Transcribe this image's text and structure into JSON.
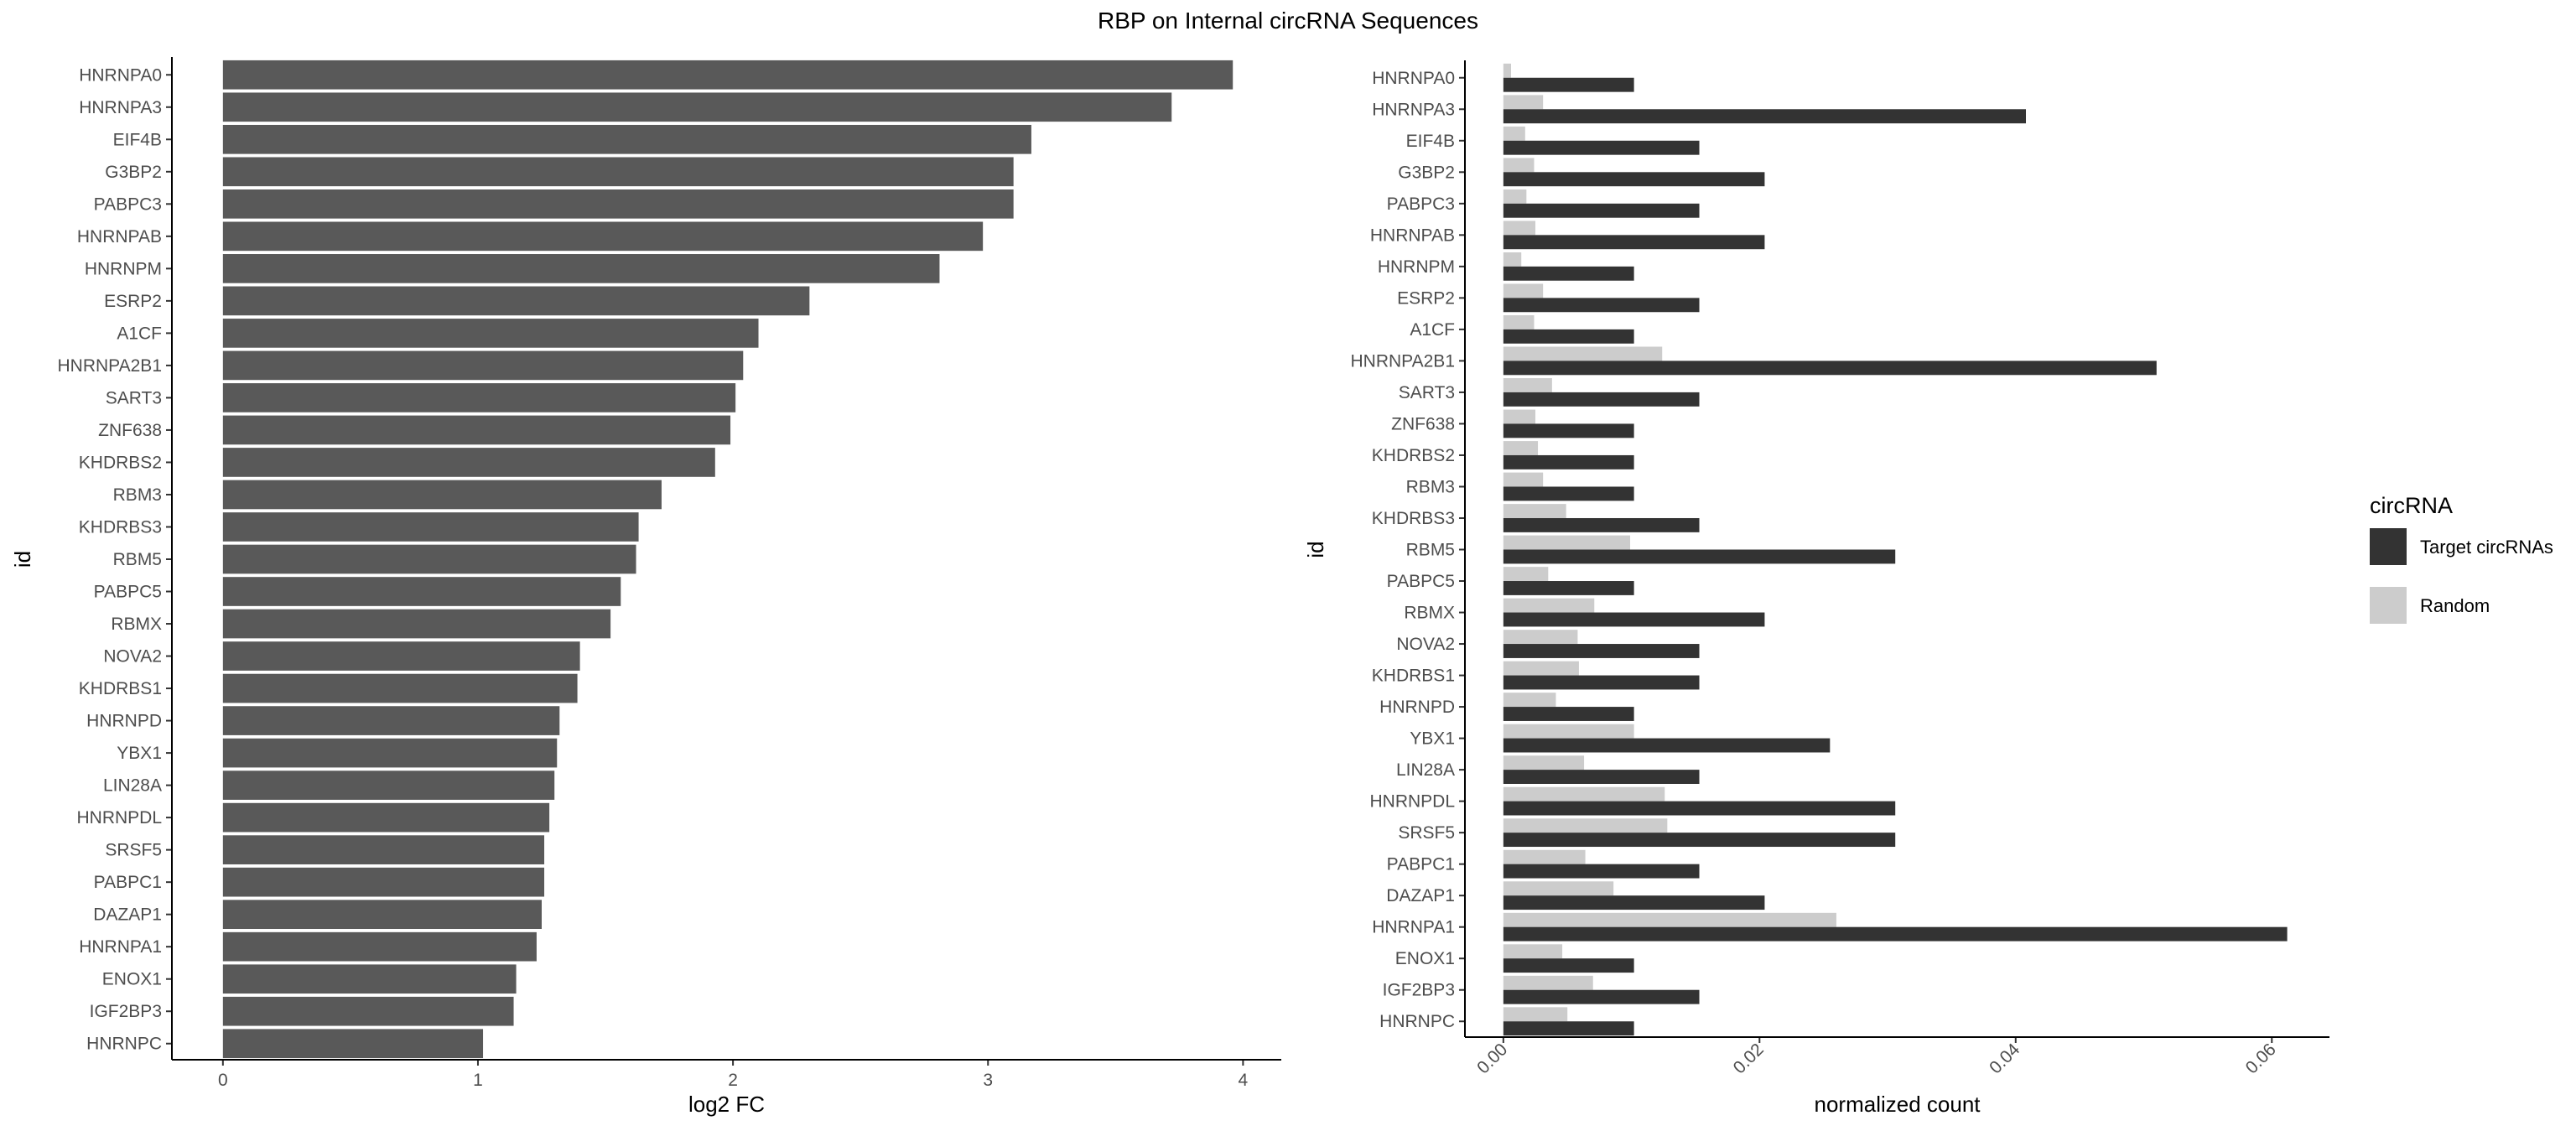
{
  "title": "RBP on Internal circRNA Sequences",
  "chart_data": [
    {
      "type": "bar",
      "orientation": "horizontal",
      "xlabel": "log2 FC",
      "ylabel": "id",
      "xlim": [
        -0.2,
        4.15
      ],
      "xticks": [
        0,
        1,
        2,
        3,
        4
      ],
      "grid": false,
      "bar_color": "#595959",
      "categories": [
        "HNRNPA0",
        "HNRNPA3",
        "EIF4B",
        "G3BP2",
        "PABPC3",
        "HNRNPAB",
        "HNRNPM",
        "ESRP2",
        "A1CF",
        "HNRNPA2B1",
        "SART3",
        "ZNF638",
        "KHDRBS2",
        "RBM3",
        "KHDRBS3",
        "RBM5",
        "PABPC5",
        "RBMX",
        "NOVA2",
        "KHDRBS1",
        "HNRNPD",
        "YBX1",
        "LIN28A",
        "HNRNPDL",
        "SRSF5",
        "PABPC1",
        "DAZAP1",
        "HNRNPA1",
        "ENOX1",
        "IGF2BP3",
        "HNRNPC"
      ],
      "values": [
        3.96,
        3.72,
        3.17,
        3.1,
        3.1,
        2.98,
        2.81,
        2.3,
        2.1,
        2.04,
        2.01,
        1.99,
        1.93,
        1.72,
        1.63,
        1.62,
        1.56,
        1.52,
        1.4,
        1.39,
        1.32,
        1.31,
        1.3,
        1.28,
        1.26,
        1.26,
        1.25,
        1.23,
        1.15,
        1.14,
        1.02
      ]
    },
    {
      "type": "bar",
      "orientation": "horizontal",
      "grouped": true,
      "xlabel": "normalized count",
      "ylabel": "id",
      "xlim": [
        -0.003,
        0.0645
      ],
      "xticks": [
        0.0,
        0.02,
        0.04,
        0.06
      ],
      "xtick_labels": [
        "0.00",
        "0.02",
        "0.04",
        "0.06"
      ],
      "grid": false,
      "legend_title": "circRNA",
      "legend_position": "right",
      "categories": [
        "HNRNPA0",
        "HNRNPA3",
        "EIF4B",
        "G3BP2",
        "PABPC3",
        "HNRNPAB",
        "HNRNPM",
        "ESRP2",
        "A1CF",
        "HNRNPA2B1",
        "SART3",
        "ZNF638",
        "KHDRBS2",
        "RBM3",
        "KHDRBS3",
        "RBM5",
        "PABPC5",
        "RBMX",
        "NOVA2",
        "KHDRBS1",
        "HNRNPD",
        "YBX1",
        "LIN28A",
        "HNRNPDL",
        "SRSF5",
        "PABPC1",
        "DAZAP1",
        "HNRNPA1",
        "ENOX1",
        "IGF2BP3",
        "HNRNPC"
      ],
      "series": [
        {
          "name": "Target circRNAs",
          "color": "#333333",
          "values": [
            0.0102,
            0.0408,
            0.0153,
            0.0204,
            0.0153,
            0.0204,
            0.0102,
            0.0153,
            0.0102,
            0.051,
            0.0153,
            0.0102,
            0.0102,
            0.0102,
            0.0153,
            0.0306,
            0.0102,
            0.0204,
            0.0153,
            0.0153,
            0.0102,
            0.0255,
            0.0153,
            0.0306,
            0.0306,
            0.0153,
            0.0204,
            0.0612,
            0.0102,
            0.0153,
            0.0102
          ]
        },
        {
          "name": "Random",
          "color": "#cccccc",
          "values": [
            0.0006,
            0.0031,
            0.0017,
            0.0024,
            0.0018,
            0.0025,
            0.0014,
            0.0031,
            0.0024,
            0.0124,
            0.0038,
            0.0025,
            0.0027,
            0.0031,
            0.0049,
            0.0099,
            0.0035,
            0.0071,
            0.0058,
            0.0059,
            0.0041,
            0.0102,
            0.0063,
            0.0126,
            0.0128,
            0.0064,
            0.0086,
            0.026,
            0.0046,
            0.007,
            0.005
          ]
        }
      ]
    }
  ]
}
